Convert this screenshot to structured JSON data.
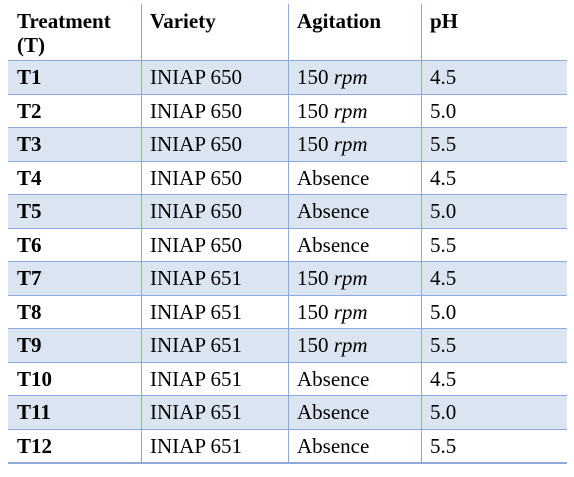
{
  "headers": {
    "treatment": "Treatment (T)",
    "variety": "Variety",
    "agitation": "Agitation",
    "ph": "pH"
  },
  "rows": [
    {
      "t": "T1",
      "variety": "INIAP 650",
      "agitation_value": "150",
      "agitation_unit": "rpm",
      "agitation_text": "",
      "ph": "4.5",
      "shaded": true
    },
    {
      "t": "T2",
      "variety": "INIAP 650",
      "agitation_value": "150",
      "agitation_unit": "rpm",
      "agitation_text": "",
      "ph": "5.0",
      "shaded": false
    },
    {
      "t": "T3",
      "variety": "INIAP 650",
      "agitation_value": "150",
      "agitation_unit": "rpm",
      "agitation_text": "",
      "ph": "5.5",
      "shaded": true
    },
    {
      "t": "T4",
      "variety": "INIAP 650",
      "agitation_value": "",
      "agitation_unit": "",
      "agitation_text": "Absence",
      "ph": "4.5",
      "shaded": false
    },
    {
      "t": "T5",
      "variety": "INIAP 650",
      "agitation_value": "",
      "agitation_unit": "",
      "agitation_text": "Absence",
      "ph": "5.0",
      "shaded": true
    },
    {
      "t": "T6",
      "variety": "INIAP 650",
      "agitation_value": "",
      "agitation_unit": "",
      "agitation_text": "Absence",
      "ph": "5.5",
      "shaded": false
    },
    {
      "t": "T7",
      "variety": "INIAP 651",
      "agitation_value": "150",
      "agitation_unit": "rpm",
      "agitation_text": "",
      "ph": "4.5",
      "shaded": true
    },
    {
      "t": "T8",
      "variety": "INIAP 651",
      "agitation_value": "150",
      "agitation_unit": "rpm",
      "agitation_text": "",
      "ph": "5.0",
      "shaded": false
    },
    {
      "t": "T9",
      "variety": "INIAP 651",
      "agitation_value": "150",
      "agitation_unit": "rpm",
      "agitation_text": "",
      "ph": "5.5",
      "shaded": true
    },
    {
      "t": "T10",
      "variety": "INIAP 651",
      "agitation_value": "",
      "agitation_unit": "",
      "agitation_text": "Absence",
      "ph": "4.5",
      "shaded": false
    },
    {
      "t": "T11",
      "variety": "INIAP 651",
      "agitation_value": "",
      "agitation_unit": "",
      "agitation_text": "Absence",
      "ph": "5.0",
      "shaded": true
    },
    {
      "t": "T12",
      "variety": "INIAP 651",
      "agitation_value": "",
      "agitation_unit": "",
      "agitation_text": "Absence",
      "ph": "5.5",
      "shaded": false
    }
  ],
  "colors": {
    "row_shade": "#dbe5f1",
    "border": "#8eaadb"
  }
}
